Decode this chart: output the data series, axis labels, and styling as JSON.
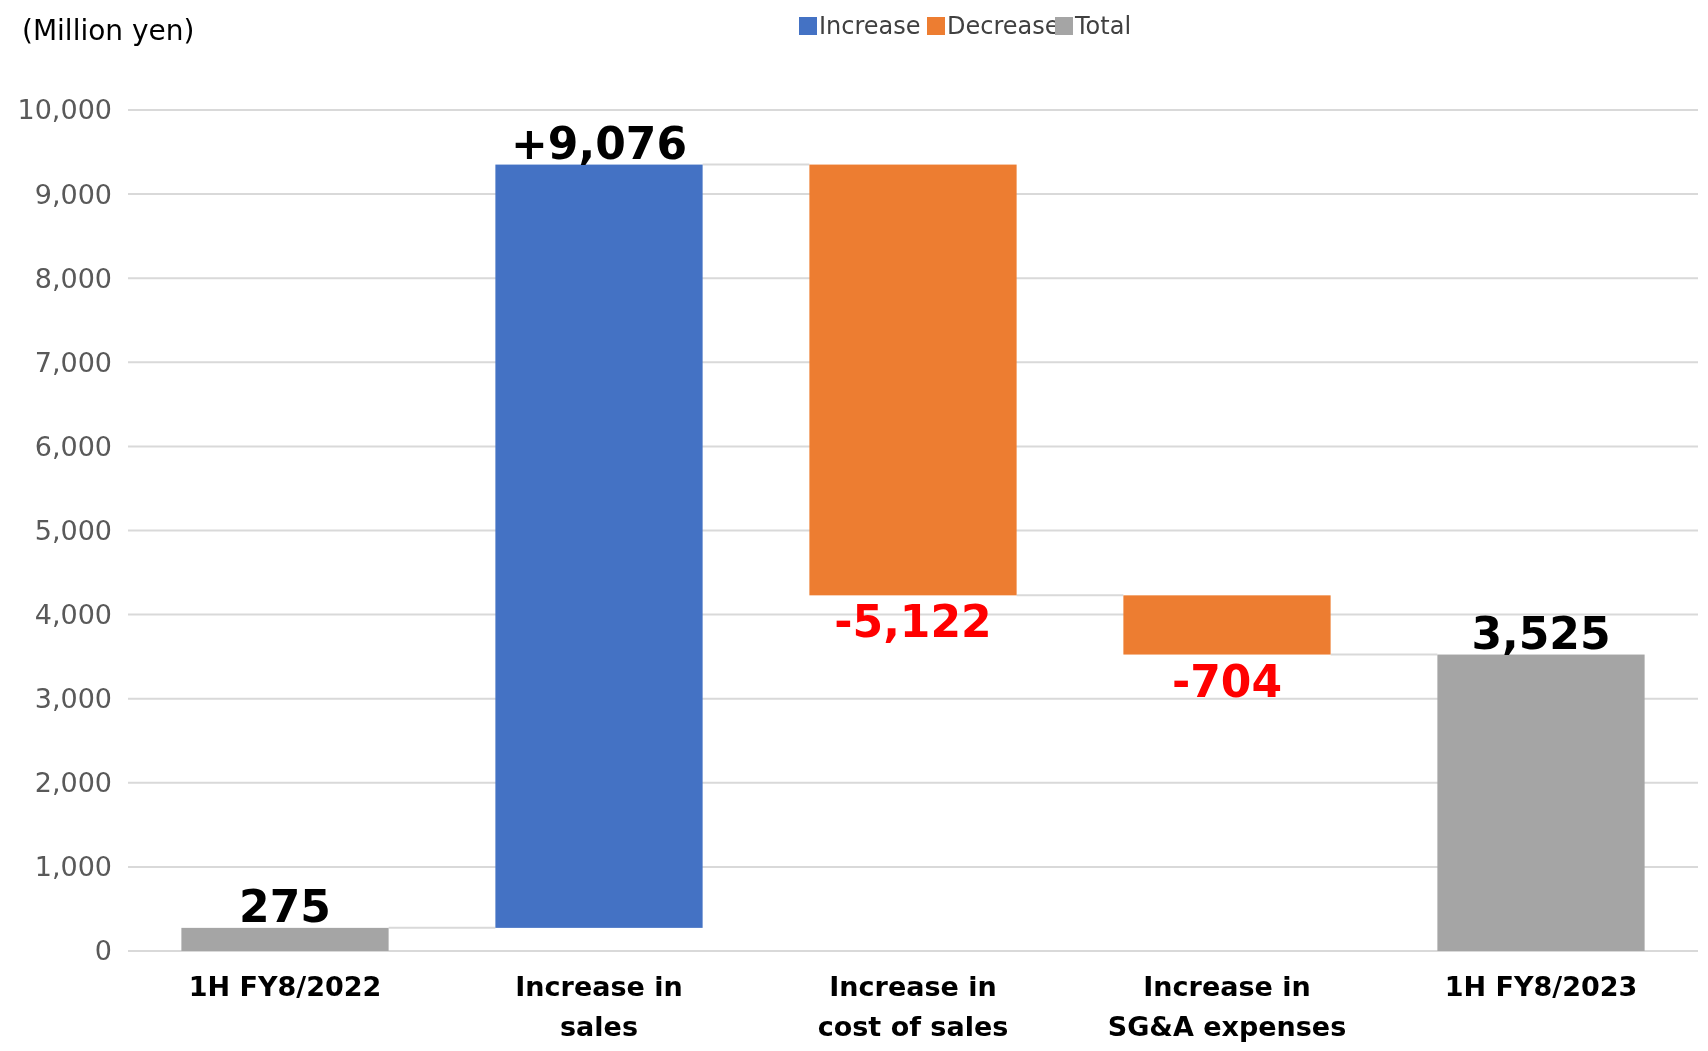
{
  "chart_data": {
    "type": "bar",
    "ylabel": "(Million yen)",
    "categories": [
      "1H FY8/2022",
      "Increase in sales",
      "Increase in cost of sales",
      "Increase in SG&A expenses",
      "1H FY8/2023"
    ],
    "series": [
      {
        "name": "Increase",
        "color": "#4472c4",
        "values": [
          null,
          9076,
          null,
          null,
          null
        ],
        "base": [
          null,
          275,
          null,
          null,
          null
        ],
        "value_labels": [
          null,
          "+9,076",
          null,
          null,
          null
        ]
      },
      {
        "name": "Decrease",
        "color": "#ed7d31",
        "values": [
          null,
          null,
          -5122,
          -704,
          null
        ],
        "base": [
          null,
          null,
          9351,
          4229,
          null
        ],
        "value_labels": [
          null,
          null,
          "-5,122",
          "-704",
          null
        ]
      },
      {
        "name": "Total",
        "color": "#a5a5a5",
        "values": [
          275,
          null,
          null,
          null,
          3525
        ],
        "base": [
          0,
          null,
          null,
          null,
          0
        ],
        "value_labels": [
          "275",
          null,
          null,
          null,
          "3,525"
        ]
      }
    ],
    "ylim": [
      0,
      10000
    ],
    "yticks": [
      {
        "value": 0,
        "label": "0"
      },
      {
        "value": 1000,
        "label": "1,000"
      },
      {
        "value": 2000,
        "label": "2,000"
      },
      {
        "value": 3000,
        "label": "3,000"
      },
      {
        "value": 4000,
        "label": "4,000"
      },
      {
        "value": 5000,
        "label": "5,000"
      },
      {
        "value": 6000,
        "label": "6,000"
      },
      {
        "value": 7000,
        "label": "7,000"
      },
      {
        "value": 8000,
        "label": "8,000"
      },
      {
        "value": 9000,
        "label": "9,000"
      },
      {
        "value": 10000,
        "label": "10,000"
      }
    ],
    "grid": "y",
    "legend": "top"
  }
}
